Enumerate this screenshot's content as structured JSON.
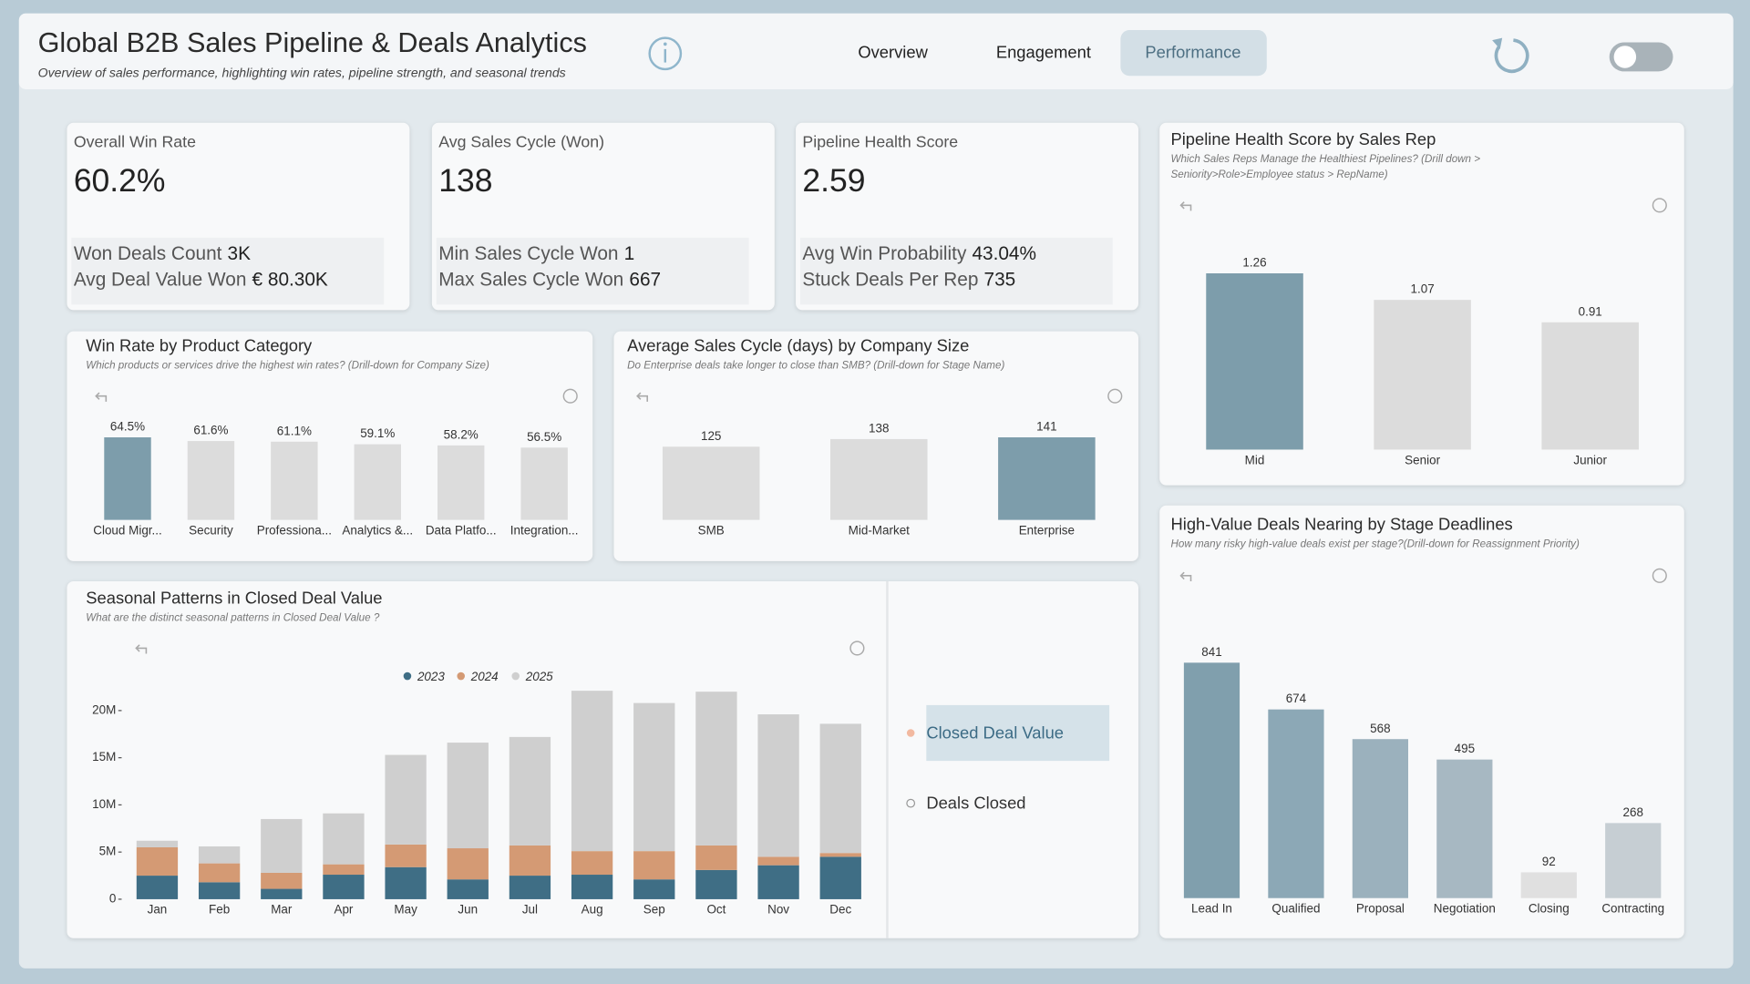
{
  "header": {
    "title": "Global B2B Sales Pipeline & Deals Analytics",
    "subtitle": "Overview of sales performance, highlighting win rates, pipeline strength, and seasonal trends"
  },
  "nav": {
    "tabs": [
      "Overview",
      "Engagement",
      "Performance"
    ],
    "active": 2
  },
  "kpis": [
    {
      "title": "Overall Win Rate",
      "value": "60.2%",
      "details": [
        {
          "label": "Won Deals Count",
          "value": "3K"
        },
        {
          "label": "Avg Deal Value Won",
          "value": "€ 80.30K"
        }
      ]
    },
    {
      "title": "Avg Sales Cycle (Won)",
      "value": "138",
      "details": [
        {
          "label": "Min Sales Cycle Won",
          "value": "1"
        },
        {
          "label": "Max Sales Cycle Won",
          "value": "667"
        }
      ]
    },
    {
      "title": "Pipeline Health Score",
      "value": "2.59",
      "details": [
        {
          "label": "Avg Win Probability",
          "value": "43.04%"
        },
        {
          "label": "Stuck Deals Per Rep",
          "value": "735"
        }
      ]
    }
  ],
  "chart_data": [
    {
      "type": "bar",
      "title": "Win Rate by Product Category",
      "subtitle": "Which products or services drive the highest win rates? (Drill-down for Company Size)",
      "categories": [
        "Cloud Migr...",
        "Security",
        "Professiona...",
        "Analytics &...",
        "Data Platfo...",
        "Integration..."
      ],
      "values": [
        64.5,
        61.6,
        61.1,
        59.1,
        58.2,
        56.5
      ],
      "value_labels": [
        "64.5%",
        "61.6%",
        "61.1%",
        "59.1%",
        "58.2%",
        "56.5%"
      ],
      "colors": [
        "#7d9dab",
        "#dcdcdc",
        "#dcdcdc",
        "#dcdcdc",
        "#dcdcdc",
        "#dcdcdc"
      ]
    },
    {
      "type": "bar",
      "title": "Average Sales Cycle (days) by Company Size",
      "subtitle": "Do Enterprise deals take longer to close than SMB?  (Drill-down for Stage Name)",
      "categories": [
        "SMB",
        "Mid-Market",
        "Enterprise"
      ],
      "values": [
        125,
        138,
        141
      ],
      "colors": [
        "#dcdcdc",
        "#dcdcdc",
        "#7d9dab"
      ]
    },
    {
      "type": "bar",
      "title": "Pipeline Health Score by Sales Rep",
      "subtitle": "Which Sales Reps Manage the Healthiest Pipelines? (Drill down > Seniority>Role>Employee status > RepName)",
      "categories": [
        "Mid",
        "Senior",
        "Junior"
      ],
      "values": [
        1.26,
        1.07,
        0.91
      ],
      "colors": [
        "#7d9dab",
        "#dcdcdc",
        "#dcdcdc"
      ]
    },
    {
      "type": "bar",
      "title": "High-Value Deals Nearing by Stage Deadlines",
      "subtitle": "How many risky high-value deals exist per stage?(Drill-down for Reassignment Priority)",
      "categories": [
        "Lead In",
        "Qualified",
        "Proposal",
        "Negotiation",
        "Closing",
        "Contracting"
      ],
      "values": [
        841,
        674,
        568,
        495,
        92,
        268
      ],
      "colors": [
        "#809fad",
        "#8ca8b6",
        "#9bb1bd",
        "#a7b8c2",
        "#e0e0e0",
        "#c6ced3"
      ]
    },
    {
      "type": "stacked_bar",
      "title": "Seasonal Patterns in Closed Deal Value",
      "subtitle": "What are the distinct seasonal patterns in Closed Deal Value ?",
      "categories": [
        "Jan",
        "Feb",
        "Mar",
        "Apr",
        "May",
        "Jun",
        "Jul",
        "Aug",
        "Sep",
        "Oct",
        "Nov",
        "Dec"
      ],
      "series": [
        {
          "name": "2023",
          "color": "#3f6e85",
          "values": [
            2500000,
            1800000,
            1100000,
            2600000,
            3400000,
            2100000,
            2500000,
            2600000,
            2100000,
            3100000,
            3600000,
            4500000
          ]
        },
        {
          "name": "2024",
          "color": "#d49a74",
          "values": [
            3000000,
            2000000,
            1700000,
            1100000,
            2400000,
            3300000,
            3200000,
            2500000,
            3000000,
            2600000,
            900000,
            400000
          ]
        },
        {
          "name": "2025",
          "color": "#cfcfcf",
          "values": [
            700000,
            1800000,
            5700000,
            5400000,
            9500000,
            11200000,
            11500000,
            17000000,
            15700000,
            16300000,
            15100000,
            13700000
          ]
        }
      ],
      "ylim": [
        0,
        22000000
      ],
      "yticks": [
        0,
        {
          "value": 5000000,
          "label": "5M"
        },
        {
          "value": 10000000,
          "label": "10M"
        },
        {
          "value": 15000000,
          "label": "15M"
        },
        {
          "value": 20000000,
          "label": "20M"
        }
      ]
    }
  ],
  "measure_selector": {
    "options": [
      "Closed Deal Value",
      "Deals Closed"
    ],
    "selected": 0
  }
}
